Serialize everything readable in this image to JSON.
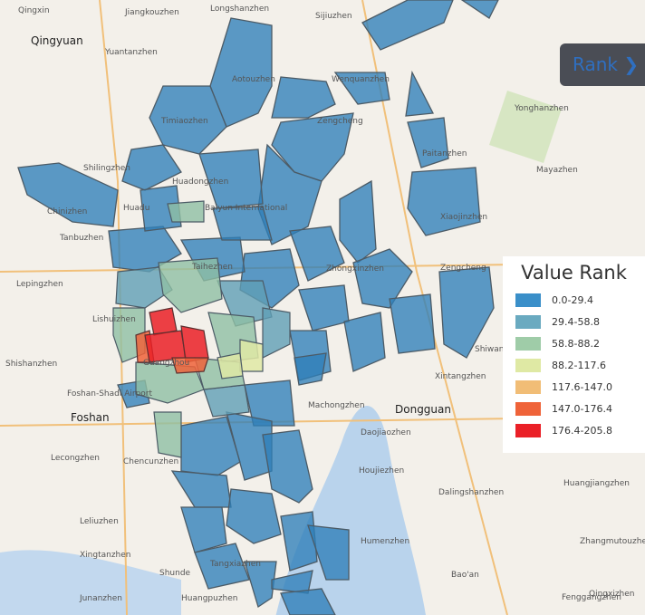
{
  "map": {
    "places": [
      "Qingxin",
      "Jiangkouzhen",
      "Longshanzhen",
      "Sijiuzhen",
      "Qingyuan",
      "Yuantanzhen",
      "Aotouzhen",
      "Wenquanzhen",
      "Yonghanzhen",
      "Timiaozhen",
      "Zengcheng",
      "Paitanzhen",
      "Mayazhen",
      "Shilingzhen",
      "Huadongzhen",
      "Chinizhen",
      "Huadu",
      "Baiyun International",
      "Xiaojinzhen",
      "Tanbuzhen",
      "Taihezhen",
      "Zhongxinzhen",
      "Zengcheng",
      "Lepingzhen",
      "Lishuizhen",
      "Shiwan",
      "Shishanzhen",
      "Guangzhou",
      "Xintangzhen",
      "Foshan-Shadi Airport",
      "Foshan",
      "Machongzhen",
      "Dongguan",
      "Daojiaozhen",
      "Lecongzhen",
      "Chencunzhen",
      "Houjiezhen",
      "Huangjiangzhen",
      "Dalingshanzhen",
      "Leliuzhen",
      "Humenzhen",
      "Xingtanzhen",
      "Shunde",
      "Tangxiazhen",
      "Bao'an",
      "Junanzhen",
      "Huangpuzhen",
      "Fenggangzhen",
      "Zhangmutouzhen",
      "Qingxizhen"
    ],
    "button": "Rank",
    "legend": {
      "title": "Value Rank",
      "items": [
        {
          "label": "0.0-29.4",
          "color": "#3a8fc9"
        },
        {
          "label": "29.4-58.8",
          "color": "#6aaac0"
        },
        {
          "label": "58.8-88.2",
          "color": "#9fcca8"
        },
        {
          "label": "88.2-117.6",
          "color": "#dfe9a4"
        },
        {
          "label": "117.6-147.0",
          "color": "#f1bd76"
        },
        {
          "label": "147.0-176.4",
          "color": "#ef6339"
        },
        {
          "label": "176.4-205.8",
          "color": "#ea2027"
        }
      ]
    }
  }
}
